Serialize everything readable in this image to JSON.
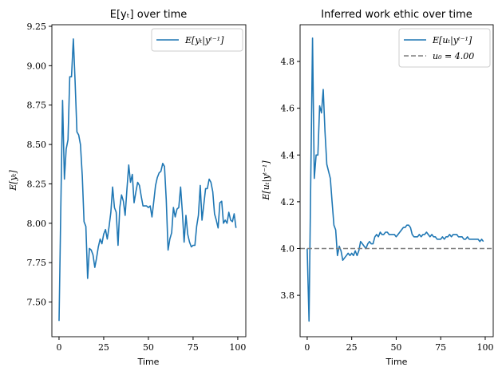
{
  "chart_data": [
    {
      "type": "line",
      "title": "E[yₜ] over time",
      "xlabel": "Time",
      "ylabel": "E[yₜ]",
      "xlim": [
        -4,
        104.5
      ],
      "ylim": [
        7.28,
        9.26
      ],
      "xticks": [
        0,
        25,
        50,
        75,
        100
      ],
      "yticks": [
        7.5,
        7.75,
        8.0,
        8.25,
        8.5,
        8.75,
        9.0,
        9.25
      ],
      "ytick_labels": [
        "7.50",
        "7.75",
        "8.00",
        "8.25",
        "8.50",
        "8.75",
        "9.00",
        "9.25"
      ],
      "grid": false,
      "legend_position": "top-right",
      "series": [
        {
          "name": "E[yₜ|yᵗ⁻¹]",
          "color": "#1f77b4",
          "style": "solid",
          "x_start": 0,
          "values": [
            7.38,
            8.1,
            8.78,
            8.28,
            8.47,
            8.53,
            8.93,
            8.93,
            9.17,
            8.9,
            8.58,
            8.56,
            8.5,
            8.3,
            8.01,
            7.98,
            7.65,
            7.84,
            7.83,
            7.8,
            7.72,
            7.78,
            7.85,
            7.9,
            7.87,
            7.93,
            7.96,
            7.9,
            7.98,
            8.07,
            8.23,
            8.1,
            8.07,
            7.86,
            8.1,
            8.18,
            8.14,
            8.05,
            8.22,
            8.37,
            8.26,
            8.31,
            8.13,
            8.2,
            8.26,
            8.24,
            8.17,
            8.11,
            8.11,
            8.11,
            8.1,
            8.11,
            8.04,
            8.14,
            8.24,
            8.29,
            8.32,
            8.33,
            8.38,
            8.36,
            8.15,
            7.83,
            7.9,
            7.94,
            8.1,
            8.04,
            8.09,
            8.1,
            8.23,
            8.07,
            7.88,
            8.05,
            7.93,
            7.88,
            7.85,
            7.86,
            7.86,
            7.98,
            8.05,
            8.24,
            8.02,
            8.12,
            8.22,
            8.22,
            8.28,
            8.26,
            8.2,
            8.06,
            8.02,
            7.97,
            8.13,
            8.14,
            8.0,
            8.02,
            8.0,
            8.07,
            8.02,
            8.01,
            8.06,
            7.97
          ]
        }
      ]
    },
    {
      "type": "line",
      "title": "Inferred work ethic over time",
      "xlabel": "Time",
      "ylabel": "E[uₜ|yᵗ⁻¹]",
      "xlim": [
        -4,
        104.5
      ],
      "ylim": [
        3.623,
        4.957
      ],
      "xticks": [
        0,
        25,
        50,
        75,
        100
      ],
      "yticks": [
        3.8,
        4.0,
        4.2,
        4.4,
        4.6,
        4.8
      ],
      "ytick_labels": [
        "3.8",
        "4.0",
        "4.2",
        "4.4",
        "4.6",
        "4.8"
      ],
      "grid": false,
      "legend_position": "top-right",
      "series": [
        {
          "name": "E[uₜ|yᵗ⁻¹]",
          "color": "#1f77b4",
          "style": "solid",
          "x_start": 0,
          "values": [
            4.0,
            3.69,
            4.3,
            4.9,
            4.3,
            4.4,
            4.4,
            4.61,
            4.58,
            4.68,
            4.5,
            4.36,
            4.33,
            4.3,
            4.2,
            4.1,
            4.08,
            3.97,
            4.01,
            3.99,
            3.95,
            3.96,
            3.97,
            3.98,
            3.97,
            3.98,
            3.97,
            3.99,
            3.97,
            3.99,
            4.03,
            4.02,
            4.01,
            4.0,
            4.02,
            4.03,
            4.02,
            4.02,
            4.05,
            4.06,
            4.05,
            4.07,
            4.06,
            4.06,
            4.07,
            4.07,
            4.06,
            4.06,
            4.06,
            4.06,
            4.05,
            4.06,
            4.07,
            4.08,
            4.09,
            4.09,
            4.1,
            4.1,
            4.09,
            4.06,
            4.05,
            4.05,
            4.05,
            4.06,
            4.05,
            4.06,
            4.06,
            4.07,
            4.06,
            4.05,
            4.06,
            4.05,
            4.05,
            4.04,
            4.04,
            4.04,
            4.05,
            4.04,
            4.05,
            4.05,
            4.06,
            4.05,
            4.06,
            4.06,
            4.06,
            4.05,
            4.05,
            4.05,
            4.04,
            4.04,
            4.05,
            4.04,
            4.04,
            4.04,
            4.04,
            4.04,
            4.04,
            4.03,
            4.04,
            4.03
          ]
        },
        {
          "name": "u₀ = 4.00",
          "color": "#7f7f7f",
          "style": "dashed",
          "hline": 4.0
        }
      ]
    }
  ]
}
